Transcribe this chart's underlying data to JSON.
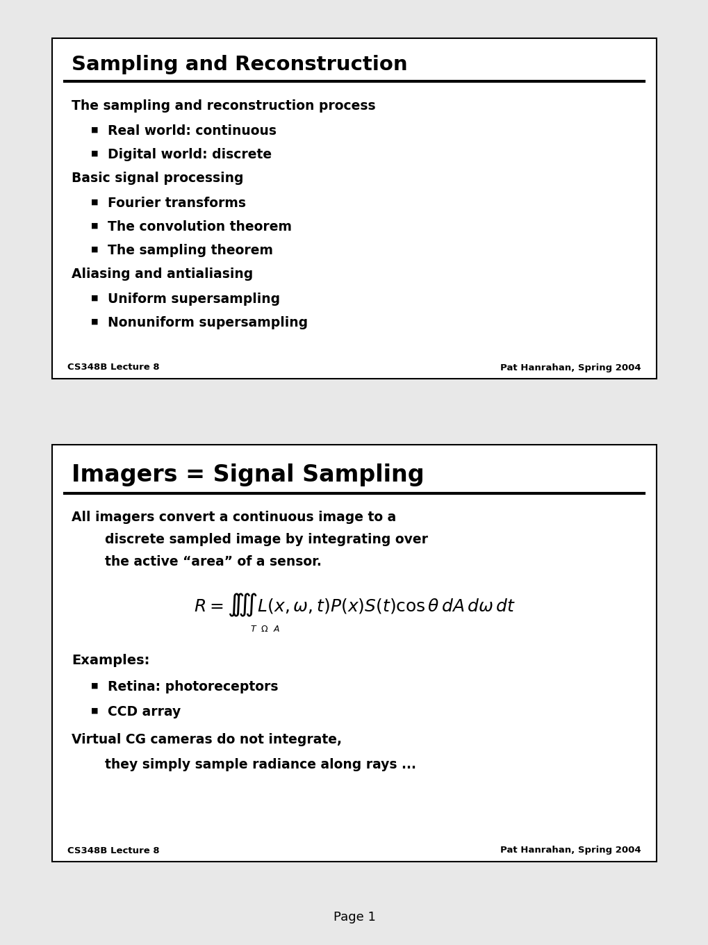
{
  "bg_color": "#e8e8e8",
  "slide_bg": "#ffffff",
  "border_color": "#000000",
  "text_color": "#000000",
  "slide1": {
    "title": "Sampling and Reconstruction",
    "items": [
      {
        "level": 0,
        "text": "The sampling and reconstruction process"
      },
      {
        "level": 1,
        "text": "Real world: continuous"
      },
      {
        "level": 1,
        "text": "Digital world: discrete"
      },
      {
        "level": 0,
        "text": "Basic signal processing"
      },
      {
        "level": 1,
        "text": "Fourier transforms"
      },
      {
        "level": 1,
        "text": "The convolution theorem"
      },
      {
        "level": 1,
        "text": "The sampling theorem"
      },
      {
        "level": 0,
        "text": "Aliasing and antialiasing"
      },
      {
        "level": 1,
        "text": "Uniform supersampling"
      },
      {
        "level": 1,
        "text": "Nonuniform supersampling"
      }
    ],
    "footer_left": "CS348B Lecture 8",
    "footer_right": "Pat Hanrahan, Spring 2004"
  },
  "slide2": {
    "title": "Imagers = Signal Sampling",
    "body_line1": "All imagers convert a continuous image to a",
    "body_line2": "discrete sampled image by integrating over",
    "body_line3": "the active “area” of a sensor.",
    "examples_label": "Examples:",
    "bullet1": "Retina: photoreceptors",
    "bullet2": "CCD array",
    "virtual_line1": "Virtual CG cameras do not integrate,",
    "virtual_line2": "they simply sample radiance along rays ...",
    "footer_left": "CS348B Lecture 8",
    "footer_right": "Pat Hanrahan, Spring 2004"
  },
  "page_label": "Page 1"
}
